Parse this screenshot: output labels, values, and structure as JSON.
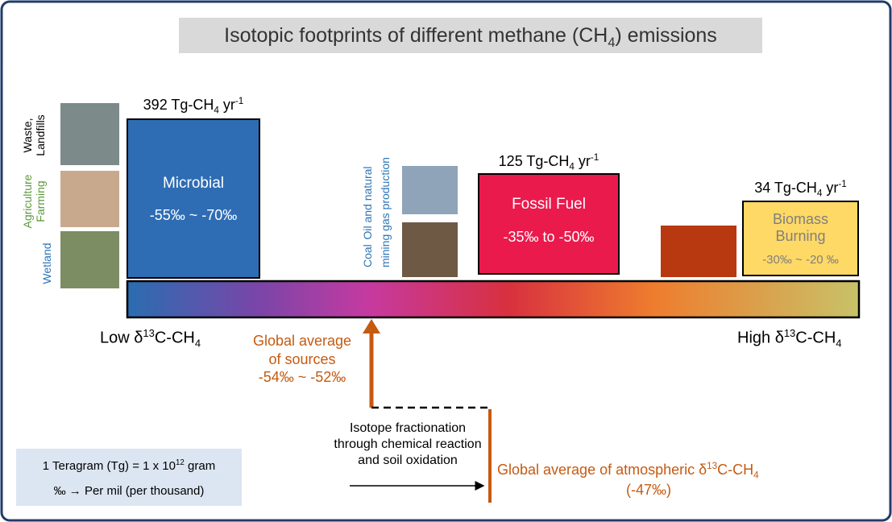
{
  "title": {
    "parts": [
      "Isotopic footprints of different methane (CH",
      "4",
      ") emissions"
    ]
  },
  "microbial": {
    "flux": {
      "parts": [
        "392 Tg-CH",
        "4",
        " yr",
        "-1"
      ]
    },
    "name": "Microbial",
    "range": "-55‰ ~ -70‰",
    "sources": {
      "waste": [
        "Waste,",
        "Landfills"
      ],
      "agriculture": [
        "Agriculture",
        "Farming"
      ],
      "wetland": "Wetland"
    }
  },
  "fossil": {
    "flux": {
      "parts": [
        "125 Tg-CH",
        "4",
        " yr",
        "-1"
      ]
    },
    "name": "Fossil Fuel",
    "range": "-35‰ to -50‰",
    "sources": {
      "coal": [
        "Coal",
        "mining"
      ],
      "oil": [
        "Oil and natural",
        "gas production"
      ]
    }
  },
  "biomass": {
    "flux": {
      "parts": [
        "34 Tg-CH",
        "4",
        " yr",
        "-1"
      ]
    },
    "name": [
      "Biomass",
      "Burning"
    ],
    "range": "-30‰ ~ -20 ‰"
  },
  "axis": {
    "low": {
      "parts": [
        "Low δ",
        "13",
        "C-CH",
        "4"
      ]
    },
    "high": {
      "parts": [
        "High δ",
        "13",
        "C-CH",
        "4"
      ]
    }
  },
  "sources_average": {
    "lines": [
      "Global average",
      "of sources",
      "-54‰ ~ -52‰"
    ]
  },
  "fractionation": {
    "lines": [
      "Isotope fractionation",
      "through chemical reaction",
      "and soil oxidation"
    ]
  },
  "atmospheric_average": {
    "parts": [
      "Global average of atmospheric δ",
      "13",
      "C-CH",
      "4"
    ],
    "value": "(-47‰)"
  },
  "legend": {
    "teragram": {
      "parts": [
        "1 Teragram (Tg) = 1 x 10",
        "12",
        " gram"
      ]
    },
    "permil": "‰ → Per mil (per thousand)"
  }
}
